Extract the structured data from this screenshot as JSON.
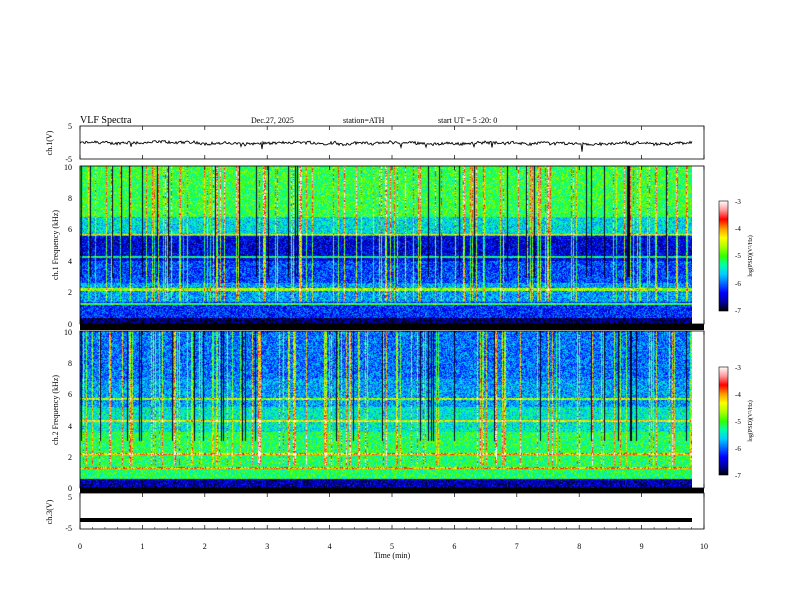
{
  "header": {
    "title": "VLF  Spectra",
    "date": "Dec.27, 2025",
    "station": "station=ATH",
    "start": "start  UT  =    5  :20: 0"
  },
  "chart_data": [
    {
      "type": "line",
      "panel": "ch1-waveform",
      "ylabel": "ch.1(V)",
      "ylim": [
        -5,
        5
      ],
      "yticks": [
        "5",
        "-5"
      ],
      "xlim": [
        0,
        10
      ],
      "series": [
        {
          "level": -0.2,
          "amplitude": 0.8
        }
      ]
    },
    {
      "type": "heatmap",
      "panel": "ch1-spectrogram",
      "ylabel": "ch.1 Frequency  (kHz)",
      "ylim": [
        0,
        10
      ],
      "yticks": [
        "10",
        "8",
        "6",
        "4",
        "2",
        "0"
      ],
      "xlim": [
        0,
        10
      ],
      "colorbar": {
        "label": "log(PSD)(V²/Hz)",
        "range": [
          -7,
          -3
        ],
        "ticks": [
          "-3",
          "-4",
          "-5",
          "-6",
          "-7"
        ]
      }
    },
    {
      "type": "heatmap",
      "panel": "ch2-spectrogram",
      "ylabel": "ch.2 Frequency  (kHz)",
      "ylim": [
        0,
        10
      ],
      "yticks": [
        "10",
        "8",
        "6",
        "4",
        "2",
        "0"
      ],
      "xlim": [
        0,
        10
      ],
      "colorbar": {
        "label": "log(PSD)(V²/Hz)",
        "range": [
          -7,
          -3
        ],
        "ticks": [
          "-3",
          "-4",
          "-5",
          "-6",
          "-7"
        ]
      }
    },
    {
      "type": "line",
      "panel": "ch3-waveform",
      "ylabel": "ch.3(V)",
      "ylim": [
        -5,
        5
      ],
      "yticks": [
        "5",
        "-5"
      ],
      "xlim": [
        0,
        10
      ],
      "series": [
        {
          "level": -2.5,
          "amplitude": 0.1
        }
      ]
    }
  ],
  "xaxis": {
    "label": "Time  (min)",
    "ticks": [
      "0",
      "1",
      "2",
      "3",
      "4",
      "5",
      "6",
      "7",
      "8",
      "9",
      "10"
    ]
  },
  "colormap": [
    "#000000",
    "#0000a0",
    "#0000ff",
    "#0066ff",
    "#00ccff",
    "#00ffaa",
    "#33ff00",
    "#aaff00",
    "#ffff00",
    "#ff9900",
    "#ff0000",
    "#ff9999",
    "#ffffff"
  ]
}
